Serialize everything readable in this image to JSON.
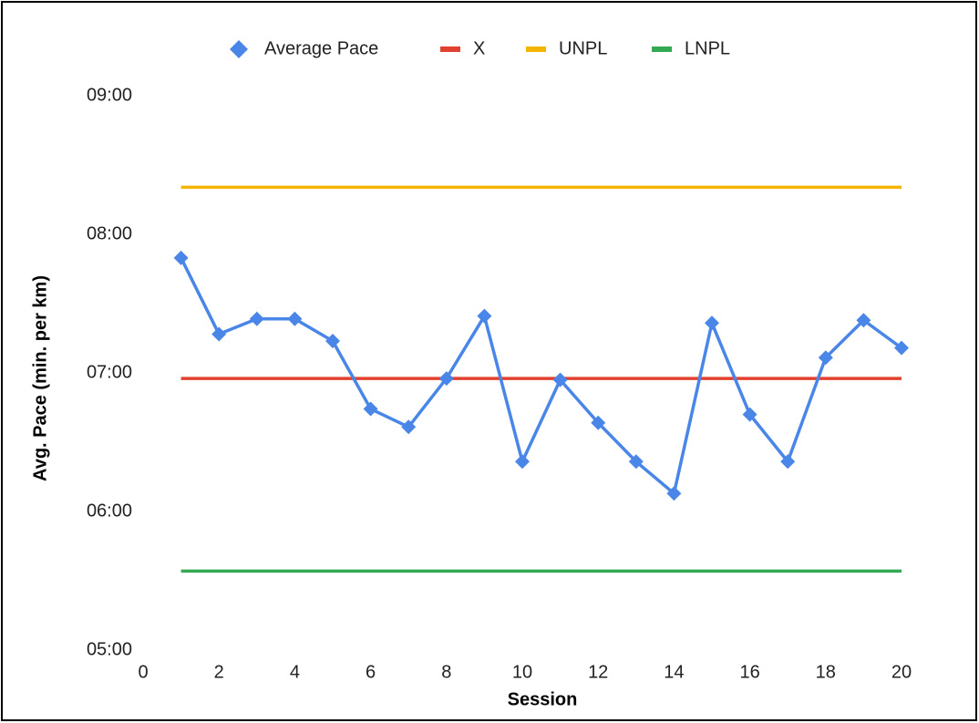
{
  "chart_data": {
    "type": "line",
    "x_label": "Session",
    "y_label": "Avg. Pace (min. per km)",
    "x": [
      1,
      2,
      3,
      4,
      5,
      6,
      7,
      8,
      9,
      10,
      11,
      12,
      13,
      14,
      15,
      16,
      17,
      18,
      19,
      20
    ],
    "series": [
      {
        "name": "Average Pace",
        "color": "#4a86e8",
        "marker": "diamond",
        "values": [
          7.83,
          7.28,
          7.39,
          7.39,
          7.23,
          6.74,
          6.61,
          6.96,
          7.41,
          6.36,
          6.95,
          6.64,
          6.36,
          6.13,
          7.36,
          6.7,
          6.36,
          7.11,
          7.38,
          7.18
        ]
      },
      {
        "name": "X",
        "color": "#e2412f",
        "values": [
          6.96,
          6.96,
          6.96,
          6.96,
          6.96,
          6.96,
          6.96,
          6.96,
          6.96,
          6.96,
          6.96,
          6.96,
          6.96,
          6.96,
          6.96,
          6.96,
          6.96,
          6.96,
          6.96,
          6.96
        ]
      },
      {
        "name": "UNPL",
        "color": "#f5b400",
        "values": [
          8.34,
          8.34,
          8.34,
          8.34,
          8.34,
          8.34,
          8.34,
          8.34,
          8.34,
          8.34,
          8.34,
          8.34,
          8.34,
          8.34,
          8.34,
          8.34,
          8.34,
          8.34,
          8.34,
          8.34
        ]
      },
      {
        "name": "LNPL",
        "color": "#34a853",
        "values": [
          5.57,
          5.57,
          5.57,
          5.57,
          5.57,
          5.57,
          5.57,
          5.57,
          5.57,
          5.57,
          5.57,
          5.57,
          5.57,
          5.57,
          5.57,
          5.57,
          5.57,
          5.57,
          5.57,
          5.57
        ]
      }
    ],
    "xlim": [
      0,
      20
    ],
    "xticks": [
      0,
      2,
      4,
      6,
      8,
      10,
      12,
      14,
      16,
      18,
      20
    ],
    "ylim": [
      5,
      9
    ],
    "yticks": [
      {
        "value": 5,
        "label": "05:00"
      },
      {
        "value": 6,
        "label": "06:00"
      },
      {
        "value": 7,
        "label": "07:00"
      },
      {
        "value": 8,
        "label": "08:00"
      },
      {
        "value": 9,
        "label": "09:00"
      }
    ],
    "grid": false,
    "legend": "top"
  }
}
